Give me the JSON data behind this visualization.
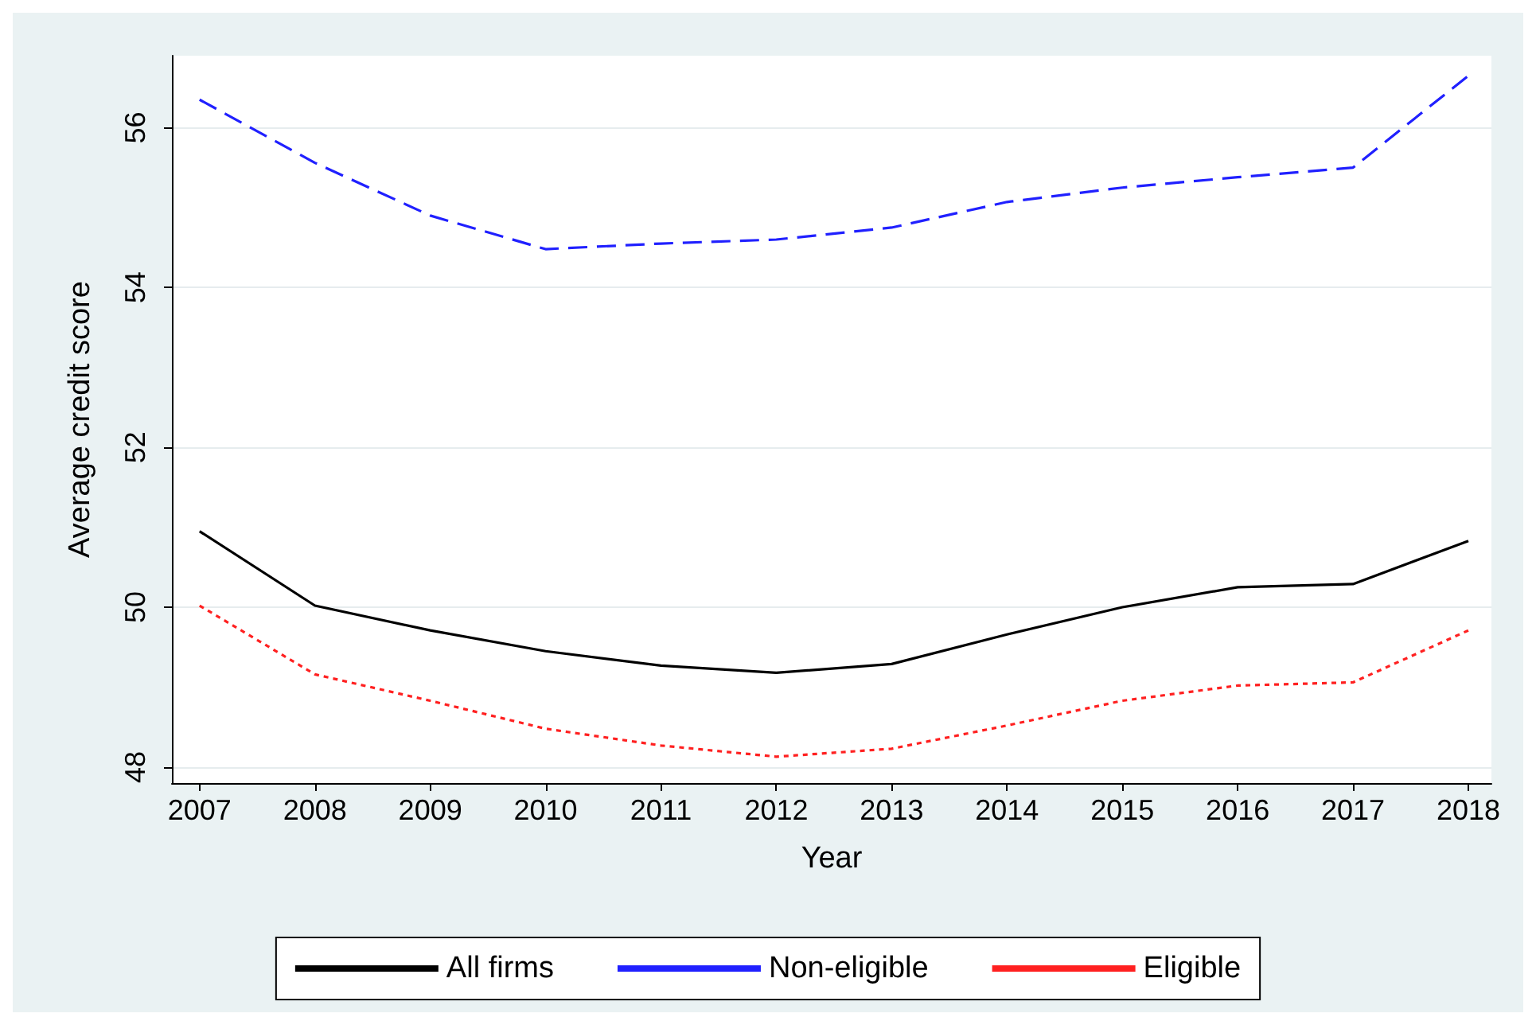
{
  "chart_data": {
    "type": "line",
    "xlabel": "Year",
    "ylabel": "Average credit score",
    "x": [
      2007,
      2008,
      2009,
      2010,
      2011,
      2012,
      2013,
      2014,
      2015,
      2016,
      2017,
      2018
    ],
    "series": [
      {
        "name": "All firms",
        "color": "#000000",
        "line_style": "solid",
        "values": [
          50.95,
          50.02,
          49.71,
          49.45,
          49.27,
          49.18,
          49.29,
          49.66,
          50.0,
          50.25,
          50.29,
          50.83
        ]
      },
      {
        "name": "Non-eligible",
        "color": "#2020ff",
        "line_style": "dashed",
        "values": [
          56.35,
          55.56,
          54.9,
          54.48,
          54.55,
          54.6,
          54.75,
          55.07,
          55.25,
          55.38,
          55.5,
          56.65
        ]
      },
      {
        "name": "Eligible",
        "color": "#ff2020",
        "line_style": "dotted",
        "values": [
          50.02,
          49.16,
          48.83,
          48.48,
          48.27,
          48.13,
          48.23,
          48.52,
          48.83,
          49.02,
          49.06,
          49.71
        ]
      }
    ],
    "xlim": [
      2006.76,
      2018.2
    ],
    "xticks": [
      2007,
      2008,
      2009,
      2010,
      2011,
      2012,
      2013,
      2014,
      2015,
      2016,
      2017,
      2018
    ],
    "ylim": [
      47.8,
      56.9
    ],
    "yticks": [
      48,
      50,
      52,
      54,
      56
    ],
    "grid": "y",
    "legend": "bottom",
    "marker": "none"
  }
}
